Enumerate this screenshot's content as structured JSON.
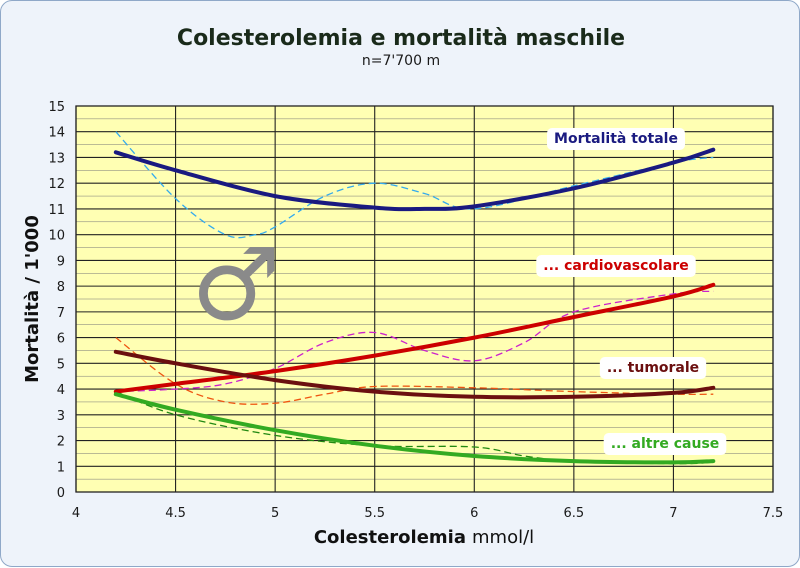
{
  "chart_data": {
    "type": "line",
    "title": "Colesterolemia e mortalità maschile",
    "subtitle": "n=7'700 m",
    "xlabel": "Colesterolemia",
    "xlabel_unit": "mmol/l",
    "ylabel": "Mortalità / 1'000",
    "xlim": [
      4,
      7.5
    ],
    "ylim": [
      0,
      15
    ],
    "x_ticks": [
      4,
      4.5,
      5,
      5.5,
      6,
      6.5,
      7,
      7.5
    ],
    "x_tick_labels": [
      "4",
      "4.5",
      "5",
      "5.5",
      "6",
      "6.5",
      "7",
      "7.5"
    ],
    "y_ticks": [
      0,
      1,
      2,
      3,
      4,
      5,
      6,
      7,
      8,
      9,
      10,
      11,
      12,
      13,
      14,
      15
    ],
    "y_tick_labels": [
      "0",
      "1",
      "2",
      "3",
      "4",
      "5",
      "6",
      "7",
      "8",
      "9",
      "10",
      "11",
      "12",
      "13",
      "14",
      "15"
    ],
    "grid": true,
    "plot_background": "#ffffb3",
    "symbol": "♂",
    "series": [
      {
        "name": "Mortalità totale",
        "color": "#1a1a80",
        "label_bg": "#ffffff",
        "trend": {
          "x": [
            4.2,
            4.5,
            5.0,
            5.5,
            5.75,
            6.0,
            6.5,
            7.0,
            7.2
          ],
          "y": [
            13.2,
            12.5,
            11.5,
            11.05,
            11.0,
            11.1,
            11.8,
            12.8,
            13.3
          ]
        },
        "observed": {
          "color": "#33aaee",
          "x": [
            4.2,
            4.5,
            4.75,
            4.9,
            5.0,
            5.25,
            5.5,
            5.75,
            6.0,
            6.5,
            7.0,
            7.2
          ],
          "y": [
            14.0,
            11.4,
            10.0,
            10.0,
            10.3,
            11.5,
            12.0,
            11.6,
            11.0,
            11.9,
            12.8,
            13.0
          ]
        }
      },
      {
        "name": "... cardiovascolare",
        "color": "#cc0000",
        "label_bg": "#ffffff",
        "trend": {
          "x": [
            4.2,
            4.5,
            5.0,
            5.5,
            6.0,
            6.5,
            7.0,
            7.2
          ],
          "y": [
            3.9,
            4.2,
            4.7,
            5.3,
            6.0,
            6.8,
            7.6,
            8.05
          ]
        },
        "observed": {
          "color": "#cc22cc",
          "x": [
            4.2,
            4.5,
            4.75,
            5.0,
            5.25,
            5.5,
            5.75,
            6.0,
            6.25,
            6.5,
            7.0,
            7.2
          ],
          "y": [
            3.9,
            4.0,
            4.2,
            4.8,
            5.8,
            6.2,
            5.5,
            5.1,
            5.8,
            7.0,
            7.7,
            7.8
          ]
        }
      },
      {
        "name": "... tumorale",
        "color": "#6b0f0f",
        "label_bg": "#ffffff",
        "trend": {
          "x": [
            4.2,
            4.5,
            5.0,
            5.5,
            6.0,
            6.5,
            7.0,
            7.2
          ],
          "y": [
            5.45,
            5.0,
            4.35,
            3.9,
            3.7,
            3.7,
            3.85,
            4.05
          ]
        },
        "observed": {
          "color": "#ee5511",
          "x": [
            4.2,
            4.5,
            4.75,
            5.0,
            5.25,
            5.5,
            6.0,
            6.5,
            7.0,
            7.2
          ],
          "y": [
            6.0,
            4.2,
            3.5,
            3.45,
            3.8,
            4.1,
            4.05,
            3.9,
            3.8,
            3.8
          ]
        }
      },
      {
        "name": "... altre cause",
        "color": "#33aa22",
        "label_bg": "#ffffff",
        "trend": {
          "x": [
            4.2,
            4.5,
            5.0,
            5.5,
            6.0,
            6.5,
            7.0,
            7.2
          ],
          "y": [
            3.8,
            3.2,
            2.4,
            1.8,
            1.4,
            1.2,
            1.15,
            1.2
          ]
        },
        "observed": {
          "color": "#228811",
          "x": [
            4.2,
            4.5,
            5.0,
            5.5,
            6.0,
            6.25,
            6.5,
            7.0,
            7.2
          ],
          "y": [
            3.9,
            3.0,
            2.2,
            1.8,
            1.75,
            1.4,
            1.2,
            1.1,
            1.15
          ]
        }
      }
    ]
  }
}
